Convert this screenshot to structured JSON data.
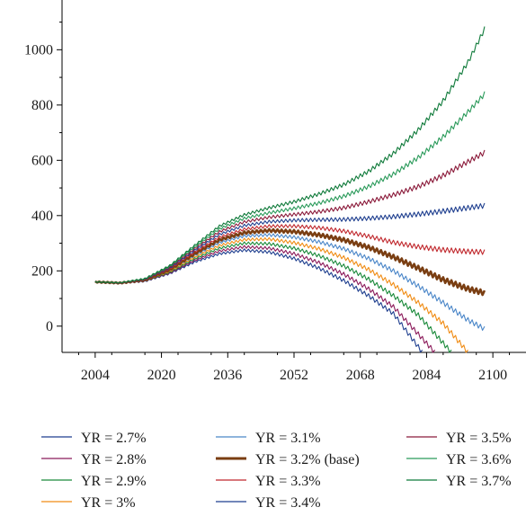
{
  "chart_data": {
    "type": "line",
    "title": "",
    "xlabel": "",
    "ylabel": "",
    "xlim": [
      1996,
      2108
    ],
    "ylim": [
      -95,
      1180
    ],
    "x_ticks": [
      2004,
      2020,
      2036,
      2052,
      2068,
      2084,
      2100
    ],
    "y_ticks": [
      0,
      200,
      400,
      600,
      800,
      1000
    ],
    "legend_placement": "bottom",
    "series": [
      {
        "name": "YR = 2.7%",
        "color": "#1f3f8f",
        "end_year": 2083,
        "points": [
          [
            2004,
            160
          ],
          [
            2010,
            155
          ],
          [
            2016,
            162
          ],
          [
            2022,
            190
          ],
          [
            2028,
            232
          ],
          [
            2034,
            262
          ],
          [
            2040,
            275
          ],
          [
            2046,
            268
          ],
          [
            2052,
            245
          ],
          [
            2058,
            210
          ],
          [
            2064,
            165
          ],
          [
            2070,
            110
          ],
          [
            2076,
            45
          ],
          [
            2083,
            -95
          ]
        ]
      },
      {
        "name": "YR = 2.8%",
        "color": "#8b1a5a",
        "end_year": 2086,
        "points": [
          [
            2004,
            160
          ],
          [
            2010,
            155
          ],
          [
            2016,
            163
          ],
          [
            2022,
            192
          ],
          [
            2028,
            238
          ],
          [
            2034,
            272
          ],
          [
            2040,
            287
          ],
          [
            2046,
            282
          ],
          [
            2052,
            262
          ],
          [
            2058,
            230
          ],
          [
            2064,
            188
          ],
          [
            2070,
            135
          ],
          [
            2076,
            70
          ],
          [
            2086,
            -95
          ]
        ]
      },
      {
        "name": "YR = 2.9%",
        "color": "#1a8a3a",
        "end_year": 2090,
        "points": [
          [
            2004,
            160
          ],
          [
            2010,
            155
          ],
          [
            2016,
            164
          ],
          [
            2022,
            195
          ],
          [
            2028,
            244
          ],
          [
            2034,
            282
          ],
          [
            2040,
            300
          ],
          [
            2046,
            298
          ],
          [
            2052,
            282
          ],
          [
            2058,
            255
          ],
          [
            2064,
            218
          ],
          [
            2070,
            170
          ],
          [
            2076,
            110
          ],
          [
            2082,
            40
          ],
          [
            2090,
            -95
          ]
        ]
      },
      {
        "name": "YR = 3%",
        "color": "#f08c14",
        "end_year": 2094,
        "points": [
          [
            2004,
            160
          ],
          [
            2010,
            155
          ],
          [
            2016,
            165
          ],
          [
            2022,
            198
          ],
          [
            2028,
            250
          ],
          [
            2034,
            292
          ],
          [
            2040,
            313
          ],
          [
            2046,
            315
          ],
          [
            2052,
            302
          ],
          [
            2058,
            280
          ],
          [
            2064,
            248
          ],
          [
            2070,
            205
          ],
          [
            2076,
            150
          ],
          [
            2082,
            85
          ],
          [
            2088,
            10
          ],
          [
            2094,
            -95
          ]
        ]
      },
      {
        "name": "YR = 3.1%",
        "color": "#4a86c8",
        "end_year": 2098,
        "points": [
          [
            2004,
            160
          ],
          [
            2010,
            156
          ],
          [
            2016,
            166
          ],
          [
            2022,
            201
          ],
          [
            2028,
            256
          ],
          [
            2034,
            302
          ],
          [
            2040,
            326
          ],
          [
            2046,
            330
          ],
          [
            2052,
            322
          ],
          [
            2058,
            305
          ],
          [
            2064,
            280
          ],
          [
            2070,
            245
          ],
          [
            2076,
            200
          ],
          [
            2082,
            145
          ],
          [
            2088,
            85
          ],
          [
            2094,
            22
          ],
          [
            2098,
            -10
          ]
        ]
      },
      {
        "name": "YR = 3.2% (base)",
        "color": "#7a3e12",
        "end_year": 2098,
        "points": [
          [
            2004,
            160
          ],
          [
            2010,
            156
          ],
          [
            2016,
            167
          ],
          [
            2022,
            204
          ],
          [
            2028,
            262
          ],
          [
            2034,
            312
          ],
          [
            2040,
            338
          ],
          [
            2046,
            346
          ],
          [
            2052,
            342
          ],
          [
            2058,
            330
          ],
          [
            2064,
            312
          ],
          [
            2070,
            285
          ],
          [
            2076,
            250
          ],
          [
            2082,
            210
          ],
          [
            2088,
            168
          ],
          [
            2094,
            135
          ],
          [
            2098,
            120
          ]
        ]
      },
      {
        "name": "YR = 3.3%",
        "color": "#c0282d",
        "end_year": 2098,
        "points": [
          [
            2004,
            160
          ],
          [
            2010,
            156
          ],
          [
            2016,
            168
          ],
          [
            2022,
            207
          ],
          [
            2028,
            268
          ],
          [
            2034,
            322
          ],
          [
            2040,
            351
          ],
          [
            2046,
            362
          ],
          [
            2052,
            362
          ],
          [
            2058,
            356
          ],
          [
            2064,
            344
          ],
          [
            2070,
            325
          ],
          [
            2076,
            303
          ],
          [
            2082,
            287
          ],
          [
            2088,
            276
          ],
          [
            2094,
            270
          ],
          [
            2098,
            268
          ]
        ]
      },
      {
        "name": "YR = 3.4%",
        "color": "#1f3f8f",
        "end_year": 2098,
        "points": [
          [
            2004,
            160
          ],
          [
            2010,
            156
          ],
          [
            2016,
            169
          ],
          [
            2022,
            210
          ],
          [
            2028,
            274
          ],
          [
            2034,
            332
          ],
          [
            2040,
            364
          ],
          [
            2046,
            378
          ],
          [
            2052,
            383
          ],
          [
            2058,
            385
          ],
          [
            2064,
            386
          ],
          [
            2070,
            390
          ],
          [
            2076,
            396
          ],
          [
            2082,
            405
          ],
          [
            2088,
            416
          ],
          [
            2094,
            428
          ],
          [
            2098,
            436
          ]
        ]
      },
      {
        "name": "YR = 3.5%",
        "color": "#8b1a3a",
        "end_year": 2098,
        "points": [
          [
            2004,
            160
          ],
          [
            2010,
            156
          ],
          [
            2016,
            170
          ],
          [
            2022,
            213
          ],
          [
            2028,
            280
          ],
          [
            2034,
            342
          ],
          [
            2040,
            377
          ],
          [
            2046,
            394
          ],
          [
            2052,
            404
          ],
          [
            2058,
            414
          ],
          [
            2064,
            428
          ],
          [
            2070,
            450
          ],
          [
            2076,
            475
          ],
          [
            2082,
            505
          ],
          [
            2088,
            545
          ],
          [
            2094,
            595
          ],
          [
            2098,
            628
          ]
        ]
      },
      {
        "name": "YR = 3.6%",
        "color": "#2a9a5a",
        "end_year": 2098,
        "points": [
          [
            2004,
            160
          ],
          [
            2010,
            157
          ],
          [
            2016,
            171
          ],
          [
            2022,
            216
          ],
          [
            2028,
            286
          ],
          [
            2034,
            352
          ],
          [
            2040,
            390
          ],
          [
            2046,
            410
          ],
          [
            2052,
            426
          ],
          [
            2058,
            445
          ],
          [
            2064,
            470
          ],
          [
            2070,
            505
          ],
          [
            2076,
            550
          ],
          [
            2082,
            610
          ],
          [
            2088,
            685
          ],
          [
            2094,
            775
          ],
          [
            2098,
            840
          ]
        ]
      },
      {
        "name": "YR = 3.7%",
        "color": "#0f7a3a",
        "end_year": 2098,
        "points": [
          [
            2004,
            160
          ],
          [
            2010,
            157
          ],
          [
            2016,
            172
          ],
          [
            2022,
            219
          ],
          [
            2028,
            292
          ],
          [
            2034,
            362
          ],
          [
            2040,
            403
          ],
          [
            2046,
            428
          ],
          [
            2052,
            450
          ],
          [
            2058,
            478
          ],
          [
            2064,
            512
          ],
          [
            2070,
            560
          ],
          [
            2076,
            625
          ],
          [
            2082,
            710
          ],
          [
            2088,
            815
          ],
          [
            2094,
            955
          ],
          [
            2098,
            1075
          ]
        ]
      }
    ]
  }
}
